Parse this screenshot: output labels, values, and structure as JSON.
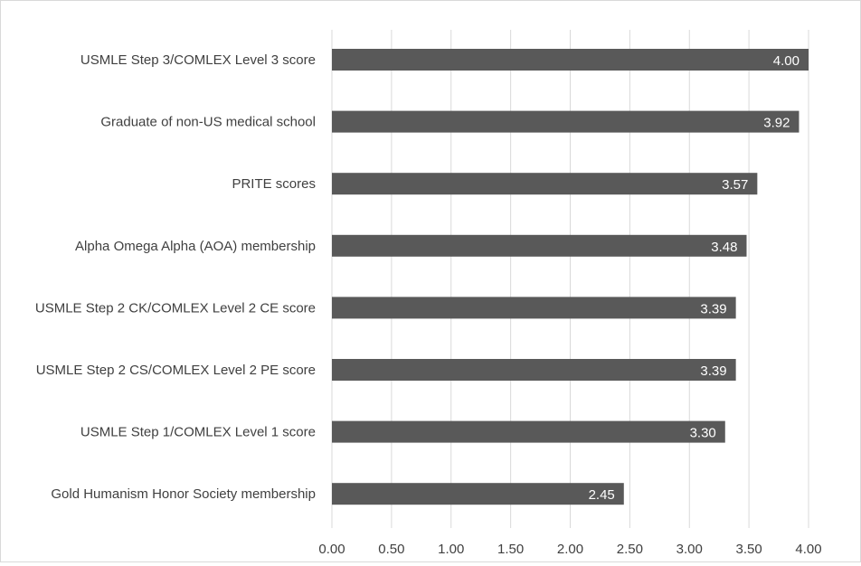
{
  "chart_data": {
    "type": "bar",
    "orientation": "horizontal",
    "categories": [
      "USMLE Step 3/COMLEX Level 3 score",
      "Graduate of non-US medical school",
      "PRITE scores",
      "Alpha Omega Alpha (AOA) membership",
      "USMLE Step 2 CK/COMLEX Level 2 CE score",
      "USMLE Step 2 CS/COMLEX Level 2 PE score",
      "USMLE Step 1/COMLEX Level 1 score",
      "Gold Humanism Honor Society membership"
    ],
    "values": [
      4.0,
      3.92,
      3.57,
      3.48,
      3.39,
      3.39,
      3.3,
      2.45
    ],
    "data_labels": [
      "4.00",
      "3.92",
      "3.57",
      "3.48",
      "3.39",
      "3.39",
      "3.30",
      "2.45"
    ],
    "xticks": [
      "0.00",
      "0.50",
      "1.00",
      "1.50",
      "2.00",
      "2.50",
      "3.00",
      "3.50",
      "4.00"
    ],
    "xlim": [
      0,
      4
    ],
    "title": "",
    "xlabel": "",
    "ylabel": "",
    "grid": "vertical",
    "legend": "none",
    "colors": {
      "bar": "#595959",
      "grid": "#d9d9d9",
      "text": "#404040",
      "label_text": "#ffffff"
    }
  }
}
